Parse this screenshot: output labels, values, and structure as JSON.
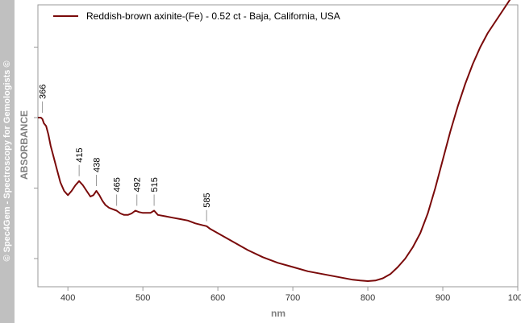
{
  "sidebar": {
    "text": "© Spec4Gem - Spectroscopy for Gemologists ©",
    "background": "#c0c0c0"
  },
  "chart_data": {
    "type": "line",
    "xlabel": "nm",
    "ylabel": "ABSORBANCE",
    "xlim": [
      360,
      1000
    ],
    "ylim": [
      0,
      1
    ],
    "x_ticks": [
      400,
      500,
      600,
      700,
      800,
      900,
      1000
    ],
    "x_tick_labels": [
      "400",
      "500",
      "600",
      "700",
      "800",
      "900",
      "1000"
    ],
    "y_ticks": [
      0.1,
      0.35,
      0.6,
      0.85
    ],
    "grid": false,
    "legend_position": "top-left",
    "series": [
      {
        "name": "Reddish-brown axinite-(Fe) - 0.52 ct - Baja, California, USA",
        "color": "#7a0a0a",
        "x": [
          360,
          364,
          366,
          368,
          371,
          374,
          377,
          380,
          385,
          390,
          395,
          400,
          405,
          410,
          415,
          420,
          425,
          430,
          434,
          438,
          442,
          446,
          450,
          455,
          460,
          465,
          470,
          475,
          480,
          485,
          490,
          495,
          500,
          505,
          510,
          515,
          520,
          530,
          540,
          550,
          560,
          570,
          580,
          585,
          590,
          600,
          620,
          640,
          660,
          680,
          700,
          720,
          740,
          760,
          780,
          790,
          800,
          810,
          820,
          830,
          840,
          850,
          860,
          870,
          880,
          890,
          900,
          910,
          920,
          930,
          940,
          950,
          960,
          970,
          980,
          990,
          1000
        ],
        "y": [
          0.6,
          0.6,
          0.595,
          0.58,
          0.57,
          0.54,
          0.5,
          0.47,
          0.42,
          0.37,
          0.34,
          0.325,
          0.34,
          0.36,
          0.375,
          0.36,
          0.34,
          0.32,
          0.325,
          0.34,
          0.325,
          0.305,
          0.29,
          0.28,
          0.275,
          0.27,
          0.26,
          0.255,
          0.255,
          0.26,
          0.27,
          0.265,
          0.262,
          0.262,
          0.262,
          0.27,
          0.255,
          0.25,
          0.245,
          0.24,
          0.235,
          0.225,
          0.218,
          0.215,
          0.205,
          0.19,
          0.16,
          0.13,
          0.105,
          0.085,
          0.07,
          0.055,
          0.045,
          0.035,
          0.025,
          0.022,
          0.02,
          0.022,
          0.03,
          0.045,
          0.07,
          0.1,
          0.14,
          0.19,
          0.26,
          0.35,
          0.45,
          0.55,
          0.64,
          0.72,
          0.79,
          0.85,
          0.9,
          0.94,
          0.98,
          1.02,
          1.04
        ]
      }
    ],
    "annotations": [
      {
        "label": "366",
        "x": 366,
        "y": 0.6
      },
      {
        "label": "415",
        "x": 415,
        "y": 0.375
      },
      {
        "label": "438",
        "x": 438,
        "y": 0.34
      },
      {
        "label": "465",
        "x": 465,
        "y": 0.27
      },
      {
        "label": "492",
        "x": 492,
        "y": 0.27
      },
      {
        "label": "515",
        "x": 515,
        "y": 0.27
      },
      {
        "label": "585",
        "x": 585,
        "y": 0.215
      }
    ]
  }
}
